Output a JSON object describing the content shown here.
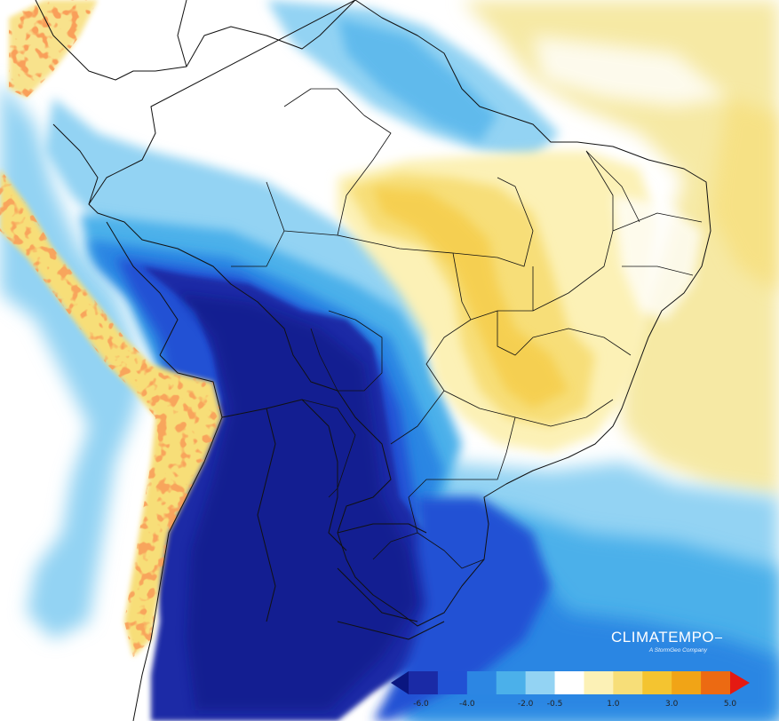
{
  "map": {
    "colors": {
      "ocean_pos": "#f6e9a4",
      "outline": "#111111"
    }
  },
  "branding": {
    "name": "CLIMATEMPO",
    "tagline": "A StormGeo Company"
  },
  "legend": {
    "min_arrow_color": "#0a1680",
    "max_arrow_color": "#e41a12",
    "bins": [
      {
        "color": "#1a2aa6"
      },
      {
        "color": "#2151d4"
      },
      {
        "color": "#2c86e3"
      },
      {
        "color": "#4bb0ea"
      },
      {
        "color": "#93d3f3"
      },
      {
        "color": "#ffffff"
      },
      {
        "color": "#fcf1b6"
      },
      {
        "color": "#f7de78"
      },
      {
        "color": "#f4c430"
      },
      {
        "color": "#f1a416"
      },
      {
        "color": "#ec6a12"
      }
    ],
    "tick_labels": [
      "-6.0",
      "-4.0",
      "-2.0",
      "-0.5",
      "1.0",
      "3.0",
      "5.0"
    ]
  }
}
